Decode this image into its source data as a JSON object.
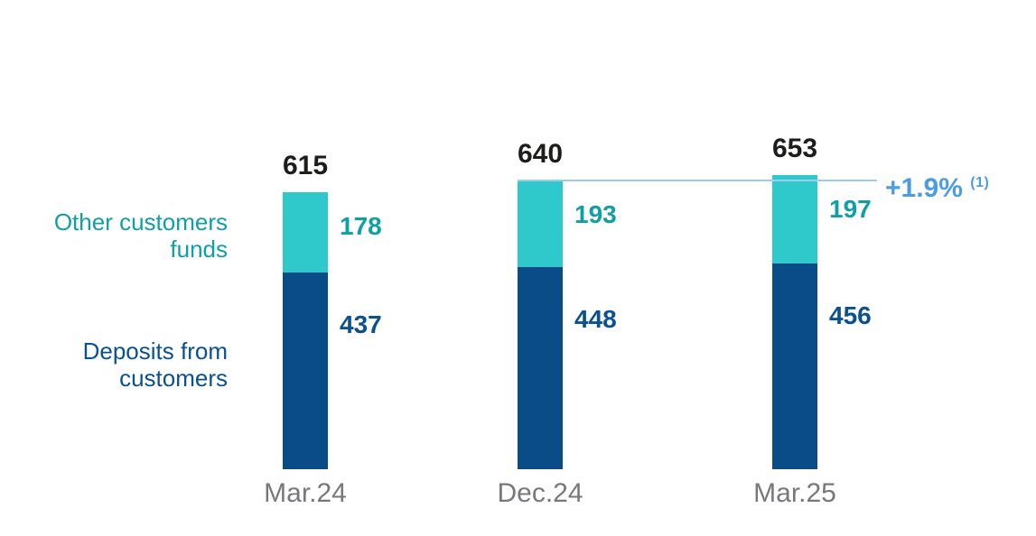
{
  "chart_data": {
    "type": "bar",
    "stacked": true,
    "grid": false,
    "legend_position": "left",
    "categories": [
      "Mar.24",
      "Dec.24",
      "Mar.25"
    ],
    "series": [
      {
        "name": "Deposits from customers",
        "color": "#0a4c88",
        "label_color": "#0b5190",
        "values": [
          437,
          448,
          456
        ]
      },
      {
        "name": "Other customers funds",
        "color": "#2fc9cb",
        "label_color": "#0f9fa6",
        "values": [
          178,
          193,
          197
        ]
      }
    ],
    "totals": [
      615,
      640,
      653
    ],
    "annotation": {
      "text": "+1.9%",
      "superscript": "(1)",
      "color": "#4c9ce4",
      "line_color": "#9fcdee",
      "line_level": 640
    }
  },
  "colors": {
    "total_label": "#1d1d1b",
    "category_label": "#77787b",
    "background": "#ffffff"
  }
}
